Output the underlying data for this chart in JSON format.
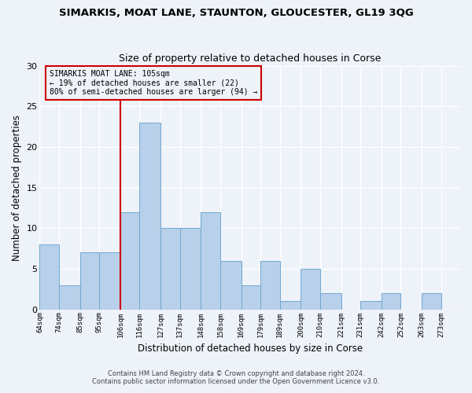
{
  "title": "SIMARKIS, MOAT LANE, STAUNTON, GLOUCESTER, GL19 3QG",
  "subtitle": "Size of property relative to detached houses in Corse",
  "xlabel": "Distribution of detached houses by size in Corse",
  "ylabel": "Number of detached properties",
  "bin_edges": [
    64,
    74,
    85,
    95,
    106,
    116,
    127,
    137,
    148,
    158,
    169,
    179,
    189,
    200,
    210,
    221,
    231,
    242,
    252,
    263,
    273
  ],
  "counts": [
    8,
    3,
    7,
    7,
    12,
    23,
    10,
    10,
    12,
    6,
    3,
    6,
    1,
    5,
    2,
    0,
    1,
    2,
    0,
    2
  ],
  "bar_color": "#b8d0ea",
  "bar_edge_color": "#6fa8d0",
  "vline_x": 106,
  "vline_color": "#cc0000",
  "annotation_text": "SIMARKIS MOAT LANE: 105sqm\n← 19% of detached houses are smaller (22)\n80% of semi-detached houses are larger (94) →",
  "ylim": [
    0,
    30
  ],
  "yticks": [
    0,
    5,
    10,
    15,
    20,
    25,
    30
  ],
  "footer_line1": "Contains HM Land Registry data © Crown copyright and database right 2024.",
  "footer_line2": "Contains public sector information licensed under the Open Government Licence v3.0.",
  "background_color": "#eef2f9",
  "grid_color": "#ffffff"
}
